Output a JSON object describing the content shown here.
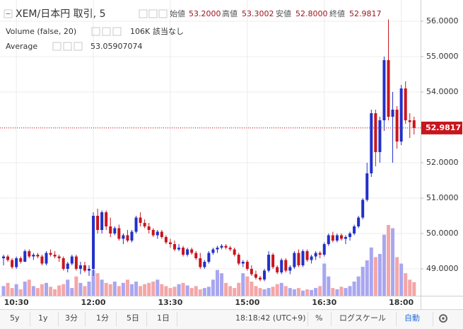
{
  "chart_data": {
    "type": "candlestick",
    "title": "XEM/日本円 取引, 5",
    "ohlc_legend": [
      {
        "label": "始値",
        "value": "53.2000"
      },
      {
        "label": "高値",
        "value": "53.3002"
      },
      {
        "label": "安値",
        "value": "52.8000"
      },
      {
        "label": "終値",
        "value": "52.9817"
      }
    ],
    "categories": [
      null,
      null,
      null,
      "10:30",
      null,
      null,
      null,
      null,
      null,
      null,
      null,
      null,
      null,
      null,
      null,
      null,
      null,
      null,
      null,
      null,
      null,
      "12:00",
      null,
      null,
      null,
      null,
      null,
      null,
      null,
      null,
      null,
      null,
      null,
      null,
      null,
      null,
      null,
      null,
      null,
      "13:30",
      null,
      null,
      null,
      null,
      null,
      null,
      null,
      null,
      null,
      null,
      null,
      null,
      null,
      null,
      null,
      null,
      null,
      "15:00",
      null,
      null,
      null,
      null,
      null,
      null,
      null,
      null,
      null,
      null,
      null,
      null,
      null,
      null,
      null,
      null,
      null,
      "16:30",
      null,
      null,
      null,
      null,
      null,
      null,
      null,
      null,
      null,
      null,
      null,
      null,
      null,
      null,
      null,
      null,
      null,
      "18:00",
      null,
      null,
      null
    ],
    "open": [
      49.3,
      49.35,
      49.25,
      49.05,
      49.3,
      49.2,
      49.5,
      49.35,
      49.4,
      49.35,
      49.15,
      49.45,
      49.4,
      49.35,
      49.3,
      49.0,
      49.15,
      49.35,
      49.0,
      49.1,
      48.95,
      49.0,
      50.5,
      50.1,
      50.6,
      50.2,
      50.0,
      50.15,
      49.85,
      49.95,
      49.8,
      50.05,
      50.45,
      50.3,
      50.2,
      50.1,
      49.95,
      50.05,
      49.9,
      49.75,
      49.7,
      49.55,
      49.6,
      49.4,
      49.55,
      49.45,
      49.3,
      49.05,
      49.2,
      49.45,
      49.55,
      49.6,
      49.65,
      49.6,
      49.55,
      49.4,
      49.15,
      49.2,
      49.0,
      48.85,
      48.75,
      48.7,
      48.95,
      49.4,
      49.05,
      48.9,
      49.25,
      48.95,
      49.05,
      49.45,
      49.1,
      49.5,
      49.25,
      49.35,
      49.45,
      49.4,
      49.7,
      49.95,
      49.8,
      49.95,
      49.85,
      49.9,
      50.0,
      50.2,
      50.45,
      50.95,
      51.7,
      53.4,
      52.3,
      53.2,
      54.9,
      53.3,
      53.5,
      52.6,
      54.1,
      53.2,
      53.2
    ],
    "high": [
      49.4,
      49.4,
      49.3,
      49.35,
      49.35,
      49.55,
      49.55,
      49.45,
      49.45,
      49.4,
      49.5,
      49.55,
      49.5,
      49.4,
      49.35,
      49.2,
      49.4,
      49.4,
      49.2,
      49.2,
      49.1,
      50.6,
      50.7,
      50.65,
      50.65,
      50.45,
      50.2,
      50.25,
      50.0,
      50.1,
      50.1,
      50.5,
      50.6,
      50.4,
      50.3,
      50.15,
      50.1,
      50.1,
      49.95,
      49.85,
      49.8,
      49.7,
      49.65,
      49.6,
      49.6,
      49.5,
      49.45,
      49.25,
      49.5,
      49.6,
      49.65,
      49.7,
      49.7,
      49.65,
      49.6,
      49.45,
      49.25,
      49.25,
      49.1,
      48.95,
      48.8,
      49.0,
      49.5,
      49.45,
      49.1,
      49.3,
      49.3,
      49.1,
      49.5,
      49.55,
      49.55,
      49.55,
      49.4,
      49.5,
      49.5,
      49.75,
      50.0,
      50.05,
      50.0,
      50.0,
      49.95,
      50.05,
      50.25,
      50.5,
      51.0,
      52.0,
      53.5,
      53.5,
      53.3,
      55.0,
      56.05,
      54.0,
      53.6,
      54.2,
      54.3,
      53.4,
      53.3002
    ],
    "low": [
      49.1,
      49.2,
      49.0,
      49.0,
      49.15,
      49.2,
      49.3,
      49.25,
      49.3,
      49.1,
      49.1,
      49.35,
      49.3,
      49.2,
      48.95,
      48.9,
      49.1,
      48.95,
      48.85,
      48.9,
      48.8,
      48.8,
      50.0,
      50.0,
      50.1,
      49.9,
      49.95,
      49.8,
      49.7,
      49.75,
      49.75,
      50.0,
      50.2,
      50.15,
      50.0,
      49.9,
      49.85,
      49.85,
      49.7,
      49.6,
      49.5,
      49.5,
      49.35,
      49.35,
      49.4,
      49.25,
      49.0,
      49.0,
      49.15,
      49.4,
      49.45,
      49.55,
      49.55,
      49.5,
      49.35,
      49.1,
      49.05,
      48.95,
      48.8,
      48.7,
      48.65,
      48.65,
      48.9,
      49.0,
      48.85,
      48.85,
      48.9,
      48.85,
      49.0,
      49.05,
      49.05,
      49.2,
      49.15,
      49.25,
      49.3,
      49.35,
      49.65,
      49.75,
      49.75,
      49.8,
      49.7,
      49.8,
      49.95,
      50.15,
      50.4,
      50.9,
      51.6,
      51.9,
      52.0,
      52.9,
      53.2,
      52.0,
      52.4,
      52.5,
      53.1,
      52.7,
      52.8
    ],
    "close": [
      49.35,
      49.25,
      49.05,
      49.3,
      49.2,
      49.5,
      49.35,
      49.4,
      49.35,
      49.15,
      49.45,
      49.4,
      49.35,
      49.3,
      49.0,
      49.15,
      49.35,
      49.0,
      49.1,
      48.95,
      49.0,
      50.5,
      50.1,
      50.6,
      50.2,
      50.0,
      50.15,
      49.85,
      49.95,
      49.8,
      50.05,
      50.45,
      50.3,
      50.2,
      50.1,
      49.95,
      50.05,
      49.9,
      49.75,
      49.7,
      49.55,
      49.6,
      49.4,
      49.55,
      49.45,
      49.3,
      49.05,
      49.2,
      49.45,
      49.55,
      49.6,
      49.65,
      49.6,
      49.55,
      49.4,
      49.15,
      49.2,
      49.0,
      48.85,
      48.75,
      48.7,
      48.95,
      49.4,
      49.05,
      48.9,
      49.25,
      48.95,
      49.05,
      49.45,
      49.1,
      49.5,
      49.25,
      49.35,
      49.45,
      49.4,
      49.7,
      49.95,
      49.8,
      49.95,
      49.85,
      49.9,
      50.0,
      50.2,
      50.45,
      50.95,
      51.7,
      53.4,
      52.3,
      53.2,
      54.9,
      53.3,
      53.5,
      52.6,
      54.1,
      53.2,
      53.15,
      52.9817
    ],
    "volume": {
      "name": "Volume (false, 20)",
      "status": "該当なし",
      "values": [
        75000,
        100000,
        60000,
        90000,
        50000,
        110000,
        125000,
        75000,
        60000,
        90000,
        100000,
        70000,
        50000,
        80000,
        90000,
        125000,
        60000,
        150000,
        100000,
        75000,
        110000,
        200000,
        175000,
        125000,
        100000,
        90000,
        110000,
        75000,
        100000,
        125000,
        90000,
        110000,
        75000,
        90000,
        100000,
        110000,
        125000,
        90000,
        75000,
        60000,
        70000,
        90000,
        100000,
        80000,
        60000,
        75000,
        50000,
        60000,
        70000,
        125000,
        200000,
        175000,
        100000,
        75000,
        60000,
        100000,
        175000,
        150000,
        110000,
        75000,
        60000,
        50000,
        60000,
        70000,
        90000,
        100000,
        75000,
        60000,
        50000,
        60000,
        40000,
        50000,
        45000,
        60000,
        75000,
        250000,
        150000,
        60000,
        50000,
        70000,
        60000,
        75000,
        110000,
        150000,
        225000,
        275000,
        375000,
        300000,
        325000,
        475000,
        550000,
        525000,
        300000,
        250000,
        175000,
        125000,
        106000
      ],
      "value_labels": [
        null,
        null,
        null,
        null,
        null,
        null,
        null,
        null,
        null,
        null,
        null,
        null,
        null,
        null,
        null,
        null,
        null,
        null,
        null,
        null,
        null,
        null,
        null,
        null,
        null,
        null,
        null,
        null,
        null,
        null,
        null,
        null,
        null,
        null,
        null,
        null,
        null,
        null,
        null,
        null,
        null,
        null,
        null,
        null,
        null,
        null,
        null,
        null,
        null,
        null,
        null,
        null,
        null,
        null,
        null,
        null,
        null,
        null,
        null,
        null,
        null,
        null,
        null,
        null,
        null,
        null,
        null,
        null,
        null,
        null,
        null,
        null,
        null,
        null,
        null,
        null,
        null,
        null,
        null,
        null,
        null,
        null,
        null,
        null,
        null,
        null,
        null,
        null,
        null,
        null,
        null,
        null,
        null,
        null,
        null,
        null,
        "106K"
      ],
      "up_color": "#a9a6f0",
      "down_color": "#f4a6a8"
    },
    "average": {
      "name": "Average",
      "value": 53.05907074
    },
    "up_color": "#2230c8",
    "down_color": "#c8161e",
    "ylim": [
      48.24,
      56.6
    ],
    "yticks": [
      {
        "value": 49,
        "label": "49.0000"
      },
      {
        "value": 50,
        "label": "50.0000"
      },
      {
        "value": 51,
        "label": "51.0000"
      },
      {
        "value": 52,
        "label": "52.0000"
      },
      {
        "value": 53,
        "label": "53.0000"
      },
      {
        "value": 54,
        "label": "54.0000"
      },
      {
        "value": 55,
        "label": "55.0000"
      },
      {
        "value": 56,
        "label": "56.0000"
      }
    ],
    "grid": true
  },
  "toolbar": {
    "ranges": [
      "5y",
      "1y",
      "3分",
      "1分",
      "5日",
      "1日"
    ],
    "time": "18:18:42 (UTC+9)",
    "percent": "%",
    "log": "ログスケール",
    "auto": "自動"
  }
}
